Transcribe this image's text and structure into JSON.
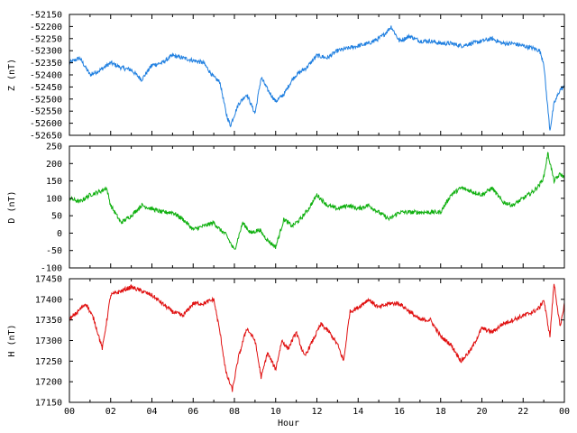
{
  "chart_data": {
    "type": "line",
    "xlabel": "Hour",
    "x_ticks": [
      "00",
      "02",
      "04",
      "06",
      "08",
      "10",
      "12",
      "14",
      "16",
      "18",
      "20",
      "22",
      "00"
    ],
    "xlim": [
      0,
      24
    ],
    "panels": [
      {
        "ylabel": "Z (nT)",
        "ylim": [
          -52650,
          -52150
        ],
        "y_ticks": [
          -52150,
          -52200,
          -52250,
          -52300,
          -52350,
          -52400,
          -52450,
          -52500,
          -52550,
          -52600,
          -52650
        ],
        "color": "#1f7fe0",
        "series": {
          "x": [
            0,
            0.5,
            1,
            1.5,
            2,
            2.5,
            3,
            3.5,
            4,
            4.5,
            5,
            5.5,
            6,
            6.5,
            7,
            7.3,
            7.6,
            7.8,
            8.2,
            8.6,
            9,
            9.3,
            9.6,
            10,
            10.4,
            10.8,
            11,
            11.5,
            12,
            12.5,
            13,
            13.5,
            14,
            14.5,
            15,
            15.3,
            15.6,
            16,
            16.5,
            17,
            17.5,
            18,
            18.5,
            19,
            19.5,
            20,
            20.5,
            21,
            21.5,
            22,
            22.5,
            22.8,
            23,
            23.1,
            23.3,
            23.5,
            23.8,
            24
          ],
          "y": [
            -52350,
            -52330,
            -52400,
            -52380,
            -52350,
            -52370,
            -52380,
            -52420,
            -52360,
            -52350,
            -52320,
            -52330,
            -52340,
            -52350,
            -52410,
            -52430,
            -52560,
            -52610,
            -52520,
            -52480,
            -52560,
            -52410,
            -52460,
            -52510,
            -52480,
            -52420,
            -52400,
            -52370,
            -52320,
            -52330,
            -52300,
            -52290,
            -52280,
            -52270,
            -52250,
            -52230,
            -52200,
            -52260,
            -52240,
            -52260,
            -52260,
            -52270,
            -52270,
            -52280,
            -52270,
            -52260,
            -52250,
            -52270,
            -52270,
            -52280,
            -52290,
            -52300,
            -52350,
            -52450,
            -52630,
            -52520,
            -52460,
            -52450
          ]
        }
      },
      {
        "ylabel": "D (nT)",
        "ylim": [
          -100,
          250
        ],
        "y_ticks": [
          250,
          200,
          150,
          100,
          50,
          0,
          -50,
          -100
        ],
        "color": "#10b010",
        "series": {
          "x": [
            0,
            0.5,
            1,
            1.5,
            1.8,
            2,
            2.5,
            3,
            3.5,
            4,
            4.5,
            5,
            5.5,
            6,
            6.5,
            7,
            7.3,
            7.6,
            8,
            8.4,
            8.8,
            9.2,
            9.6,
            10,
            10.4,
            10.8,
            11.2,
            11.6,
            12,
            12.5,
            13,
            13.5,
            14,
            14.5,
            15,
            15.5,
            16,
            16.5,
            17,
            17.5,
            18,
            18.5,
            19,
            19.5,
            20,
            20.5,
            21,
            21.5,
            22,
            22.5,
            22.8,
            23,
            23.2,
            23.5,
            23.8,
            24
          ],
          "y": [
            100,
            90,
            110,
            120,
            130,
            80,
            30,
            50,
            80,
            70,
            60,
            60,
            40,
            10,
            20,
            30,
            10,
            -5,
            -50,
            30,
            0,
            10,
            -20,
            -40,
            40,
            20,
            40,
            70,
            110,
            80,
            70,
            80,
            70,
            80,
            60,
            40,
            60,
            60,
            60,
            60,
            60,
            110,
            130,
            120,
            110,
            130,
            90,
            80,
            100,
            120,
            140,
            160,
            230,
            150,
            170,
            160
          ]
        }
      },
      {
        "ylabel": "H (nT)",
        "ylim": [
          17150,
          17450
        ],
        "y_ticks": [
          17450,
          17400,
          17350,
          17300,
          17250,
          17200,
          17150
        ],
        "color": "#e01010",
        "series": {
          "x": [
            0,
            0.4,
            0.8,
            1.2,
            1.6,
            2,
            2.5,
            3,
            3.5,
            4,
            4.5,
            5,
            5.5,
            6,
            6.5,
            7,
            7.3,
            7.6,
            7.9,
            8.2,
            8.6,
            9,
            9.3,
            9.6,
            10,
            10.3,
            10.6,
            11,
            11.4,
            11.8,
            12.2,
            12.6,
            13,
            13.3,
            13.6,
            14,
            14.5,
            15,
            15.5,
            16,
            16.5,
            17,
            17.5,
            18,
            18.5,
            19,
            19.5,
            20,
            20.5,
            21,
            21.5,
            22,
            22.5,
            22.8,
            23,
            23.3,
            23.5,
            23.8,
            24
          ],
          "y": [
            17350,
            17370,
            17390,
            17350,
            17280,
            17410,
            17420,
            17430,
            17420,
            17410,
            17390,
            17370,
            17360,
            17390,
            17390,
            17400,
            17320,
            17220,
            17180,
            17260,
            17330,
            17300,
            17210,
            17270,
            17230,
            17300,
            17280,
            17320,
            17260,
            17300,
            17340,
            17320,
            17290,
            17250,
            17370,
            17380,
            17400,
            17380,
            17390,
            17390,
            17370,
            17350,
            17350,
            17310,
            17290,
            17250,
            17280,
            17330,
            17320,
            17340,
            17350,
            17360,
            17370,
            17380,
            17400,
            17310,
            17440,
            17330,
            17390
          ]
        }
      }
    ]
  }
}
